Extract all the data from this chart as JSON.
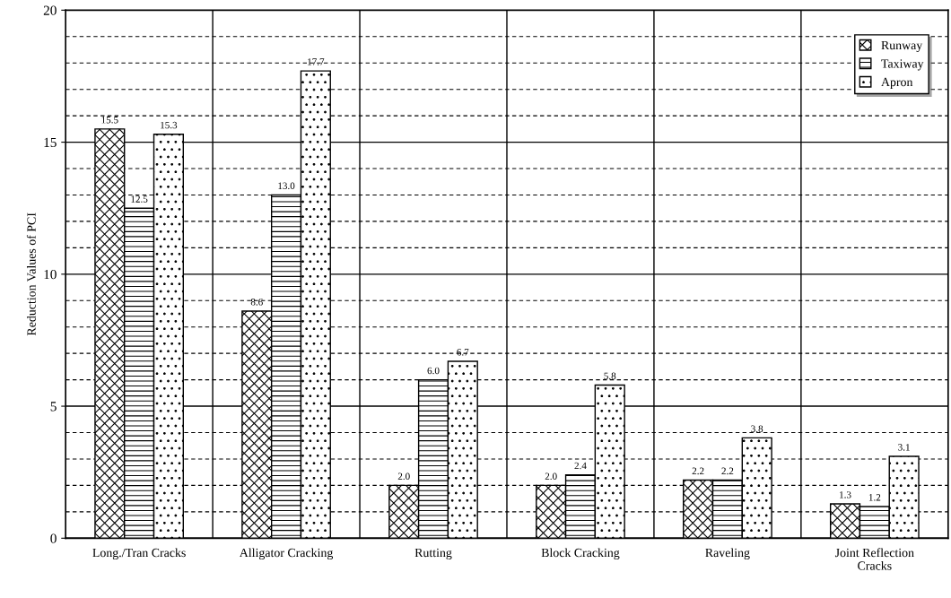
{
  "chart_data": {
    "type": "bar",
    "ylabel": "Reduction Values of PCI",
    "categories": [
      "Long./Tran Cracks",
      "Alligator Cracking",
      "Rutting",
      "Block Cracking",
      "Raveling",
      "Joint Reflection Cracks"
    ],
    "series": [
      {
        "name": "Runway",
        "color": "#000000",
        "values": [
          15.5,
          8.6,
          2.0,
          2.0,
          2.2,
          1.3
        ],
        "value_labels": [
          "15.5",
          "8.6",
          "2.0",
          "2.0",
          "2.2",
          "1.3"
        ]
      },
      {
        "name": "Taxiway",
        "color": "#000000",
        "values": [
          12.5,
          13.0,
          6.0,
          2.4,
          2.2,
          1.2
        ],
        "value_labels": [
          "12.5",
          "13.0",
          "6.0",
          "2.4",
          "2.2",
          "1.2"
        ]
      },
      {
        "name": "Apron",
        "color": "#000000",
        "values": [
          15.3,
          17.7,
          6.7,
          5.8,
          3.8,
          3.1
        ],
        "value_labels": [
          "15.3",
          "17.7",
          "6.7",
          "5.8",
          "3.8",
          "3.1"
        ]
      }
    ],
    "ylim": [
      0,
      20
    ],
    "yticks": [
      0,
      5,
      10,
      15,
      20
    ],
    "grid": true,
    "legend": "top right"
  }
}
